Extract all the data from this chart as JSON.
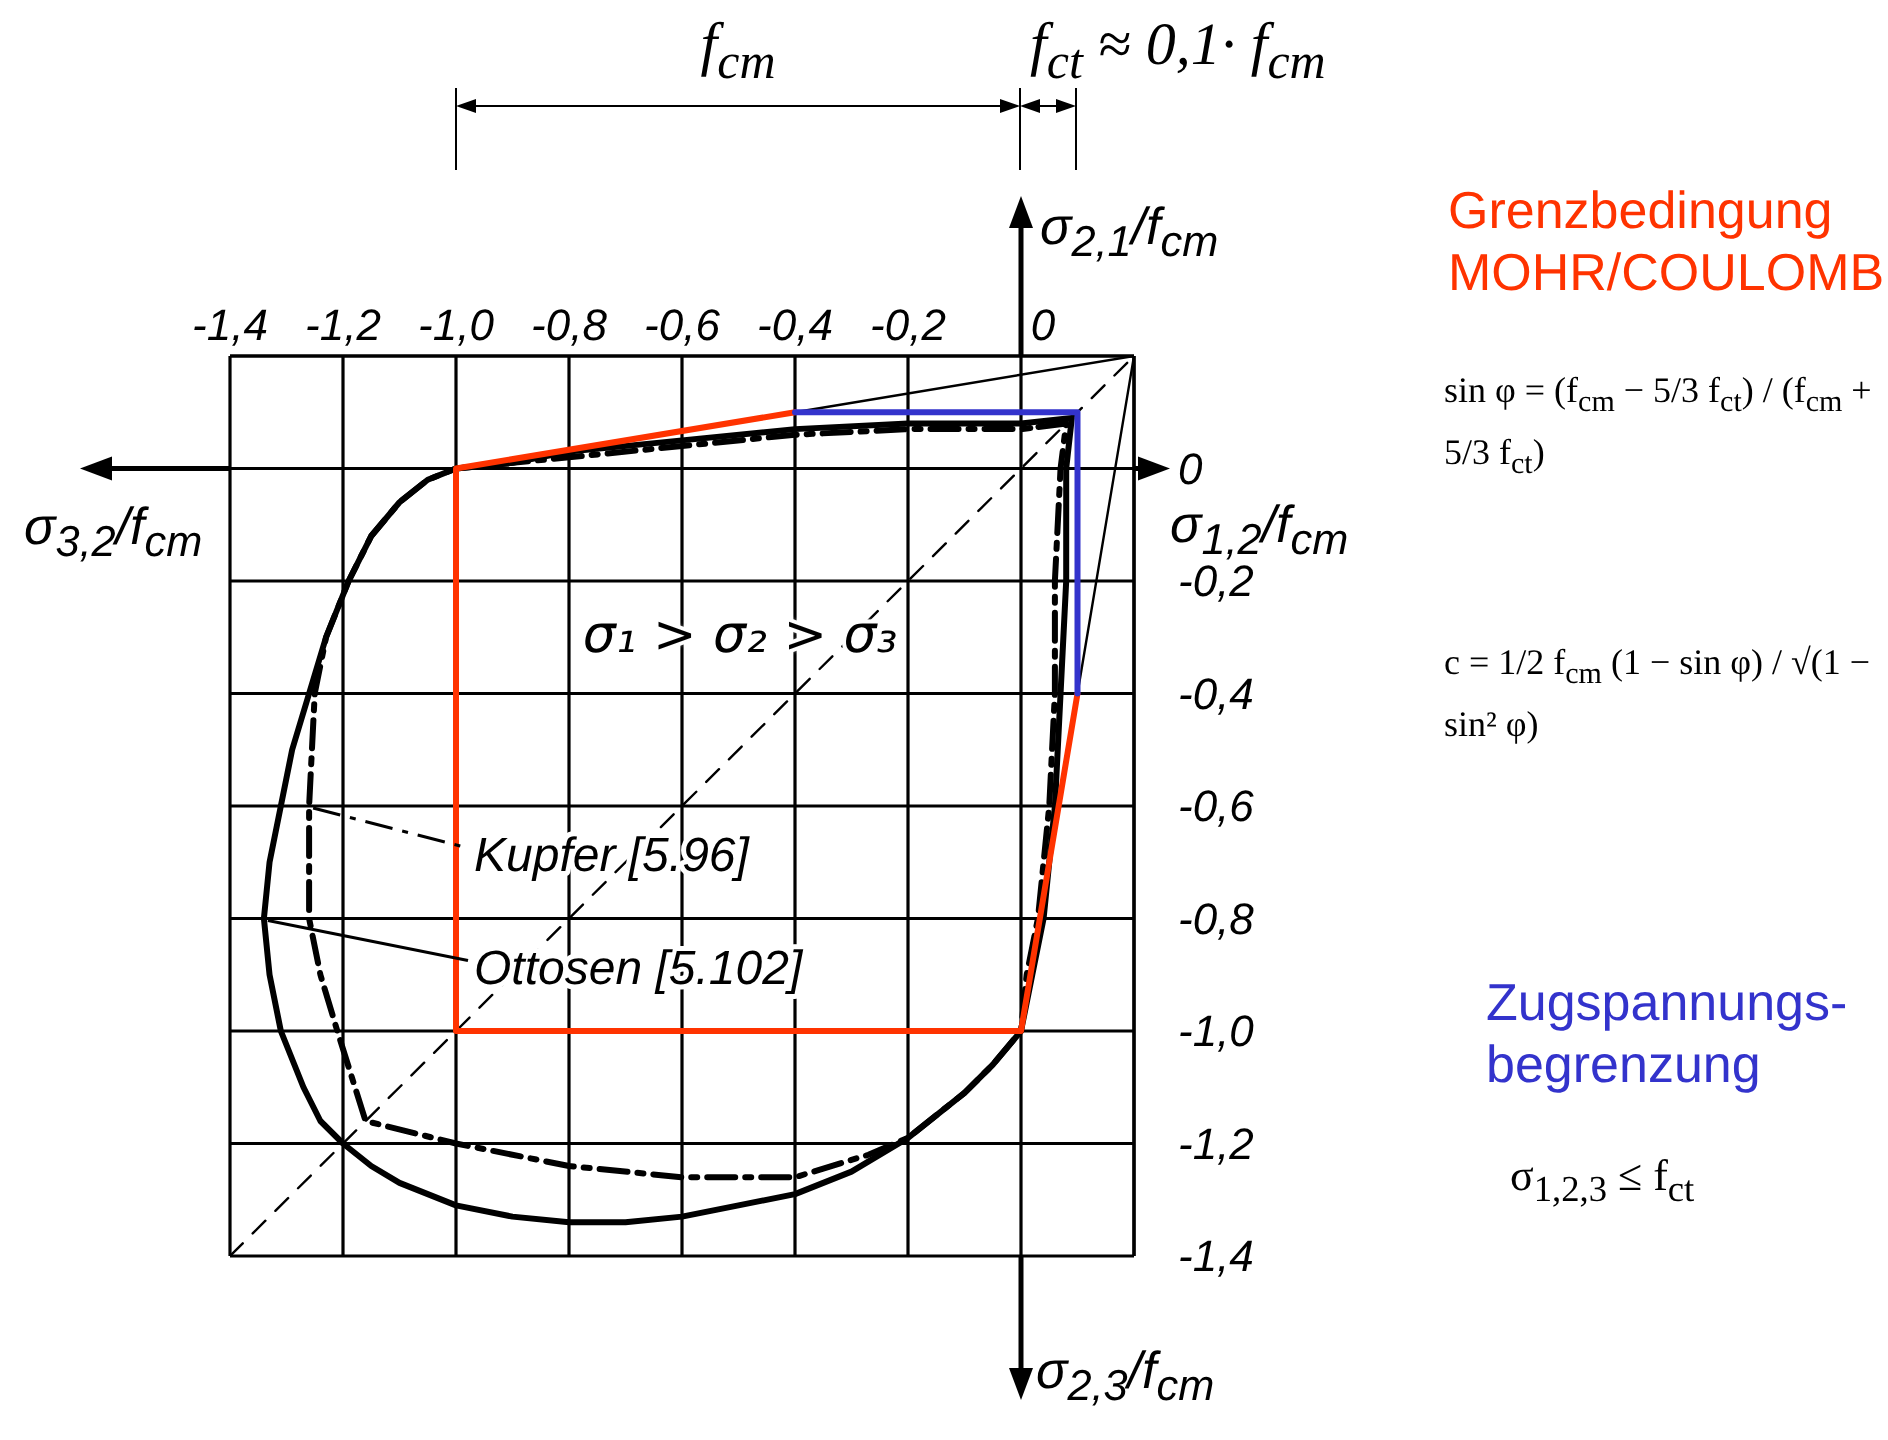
{
  "chart_data": {
    "type": "line",
    "xlabel": "σ$_{1,2}$/f$_{cm}$",
    "ylabel": "σ$_{2,1}$/f$_{cm}$",
    "xlim": [
      -1.4,
      0.2
    ],
    "ylim": [
      -1.4,
      0.2
    ],
    "xticks": [
      {
        "value": -1.4,
        "label": "-1,4"
      },
      {
        "value": -1.2,
        "label": "-1,2"
      },
      {
        "value": -1.0,
        "label": "-1,0"
      },
      {
        "value": -0.8,
        "label": "-0,8"
      },
      {
        "value": -0.6,
        "label": "-0,6"
      },
      {
        "value": -0.4,
        "label": "-0,4"
      },
      {
        "value": -0.2,
        "label": "-0,2"
      },
      0
    ],
    "yticks": [
      0,
      {
        "value": -0.2,
        "label": "-0,2"
      },
      {
        "value": -0.4,
        "label": "-0,4"
      },
      {
        "value": -0.6,
        "label": "-0,6"
      },
      {
        "value": -0.8,
        "label": "-0,8"
      },
      {
        "value": -1.0,
        "label": "-1,0"
      },
      {
        "value": -1.2,
        "label": "-1,2"
      },
      {
        "value": -1.4,
        "label": "-1,4"
      }
    ],
    "grid": true,
    "legend": "left",
    "annotations": [
      "σ₁ > σ₂ > σ₃",
      "f$_{cm}$",
      "f$_{ct}$ ≈ 0,1· f$_{cm}$",
      "σ$_{3,2}$/f$_{cm}$",
      "σ$_{2,3}$/f$_{cm}$",
      "sin φ = (f$_{cm}$ − 5/3 f$_{ct}$) / (f$_{cm}$ + 5/3 f$_{ct}$)",
      "c = 1/2 f$_{cm}$ (1 − sin φ) / √(1 − sin² φ)",
      "σ$_{1,2,3}$ ≤ f$_{ct}$"
    ],
    "series": [
      {
        "color": "#000000",
        "line_style": "dashed",
        "x": [
          -1.4,
          0.2
        ],
        "values": [
          -1.4,
          0.2
        ]
      },
      {
        "color": "#000000",
        "x": [
          -0.4,
          0.2,
          0.1
        ],
        "values": [
          0.1,
          0.2,
          -0.4
        ]
      },
      {
        "name": "Ottosen [5.102]",
        "color": "#000000",
        "x": [
          0.09,
          0,
          -0.2,
          -0.4,
          -0.6,
          -0.8,
          -0.9,
          -1.0,
          -1.05,
          -1.1,
          -1.15,
          -1.19,
          -1.23,
          -1.26,
          -1.29,
          -1.31,
          -1.33,
          -1.34,
          -1.33,
          -1.31,
          -1.27,
          -1.24,
          -1.2,
          -1.15,
          -1.1,
          -1.0,
          -0.9,
          -0.8,
          -0.7,
          -0.6,
          -0.5,
          -0.4,
          -0.3,
          -0.2,
          -0.15,
          -0.1,
          -0.05,
          0,
          0.01,
          0.02,
          0.04,
          0.05,
          0.06,
          0.07,
          0.08,
          0.08,
          0.09,
          0
        ],
        "values": [
          0.09,
          0.08,
          0.08,
          0.07,
          0.05,
          0.03,
          0.01,
          0,
          -0.02,
          -0.06,
          -0.12,
          -0.2,
          -0.3,
          -0.4,
          -0.5,
          -0.6,
          -0.7,
          -0.8,
          -0.9,
          -1.0,
          -1.1,
          -1.16,
          -1.2,
          -1.24,
          -1.27,
          -1.31,
          -1.33,
          -1.34,
          -1.34,
          -1.33,
          -1.31,
          -1.29,
          -1.25,
          -1.19,
          -1.15,
          -1.11,
          -1.06,
          -1.0,
          -0.95,
          -0.9,
          -0.8,
          -0.7,
          -0.6,
          -0.4,
          -0.2,
          0,
          0.09,
          0.08
        ]
      },
      {
        "name": "Kupfer [5.96]",
        "color": "#000000",
        "line_style": "dashed",
        "x": [
          0.08,
          0,
          -0.2,
          -0.4,
          -0.6,
          -0.8,
          -0.9,
          -1.0,
          -1.05,
          -1.1,
          -1.15,
          -1.19,
          -1.23,
          -1.25,
          -1.26,
          -1.26,
          -1.24,
          -1.21,
          -1.16,
          -1.0,
          -0.8,
          -0.6,
          -0.4,
          -0.27,
          -0.2,
          -0.1,
          -0.05,
          0,
          0.01,
          0.03,
          0.05,
          0.06,
          0.06,
          0.07,
          0.08,
          0
        ],
        "values": [
          0.08,
          0.07,
          0.07,
          0.06,
          0.04,
          0.02,
          0.01,
          0,
          -0.02,
          -0.06,
          -0.12,
          -0.2,
          -0.3,
          -0.4,
          -0.6,
          -0.8,
          -0.9,
          -1.0,
          -1.16,
          -1.2,
          -1.24,
          -1.26,
          -1.26,
          -1.22,
          -1.19,
          -1.11,
          -1.06,
          -1.0,
          -0.9,
          -0.8,
          -0.6,
          -0.4,
          -0.2,
          0,
          0.08,
          0.07
        ]
      },
      {
        "name": "Grenzbedingung\nMOHR/COULOMB",
        "color": "#ff3300",
        "x": [
          -0.4,
          -1.0,
          -1.0,
          0,
          0.1
        ],
        "values": [
          0.1,
          0,
          -1.0,
          -1.0,
          -0.4
        ]
      },
      {
        "name": "Zugspannungs-\nbegrenzung",
        "color": "#3333cc",
        "x": [
          -0.4,
          0.1,
          0.1
        ],
        "values": [
          0.1,
          0.1,
          -0.4
        ]
      }
    ]
  }
}
